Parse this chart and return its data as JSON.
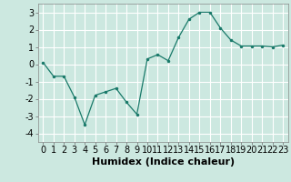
{
  "x": [
    0,
    1,
    2,
    3,
    4,
    5,
    6,
    7,
    8,
    9,
    10,
    11,
    12,
    13,
    14,
    15,
    16,
    17,
    18,
    19,
    20,
    21,
    22,
    23
  ],
  "y": [
    0.1,
    -0.7,
    -0.7,
    -1.9,
    -3.5,
    -1.8,
    -1.6,
    -1.4,
    -2.2,
    -2.9,
    0.3,
    0.55,
    0.2,
    1.55,
    2.6,
    3.0,
    3.0,
    2.1,
    1.4,
    1.05,
    1.05,
    1.05,
    1.0,
    1.1
  ],
  "xlabel": "Humidex (Indice chaleur)",
  "ylim": [
    -4.5,
    3.5
  ],
  "xlim": [
    -0.5,
    23.5
  ],
  "yticks": [
    -4,
    -3,
    -2,
    -1,
    0,
    1,
    2,
    3
  ],
  "xticks": [
    0,
    1,
    2,
    3,
    4,
    5,
    6,
    7,
    8,
    9,
    10,
    11,
    12,
    13,
    14,
    15,
    16,
    17,
    18,
    19,
    20,
    21,
    22,
    23
  ],
  "line_color": "#1a7a6a",
  "marker_color": "#1a7a6a",
  "bg_color": "#cce8e0",
  "grid_color": "#ffffff",
  "xlabel_fontsize": 8,
  "tick_fontsize": 7
}
